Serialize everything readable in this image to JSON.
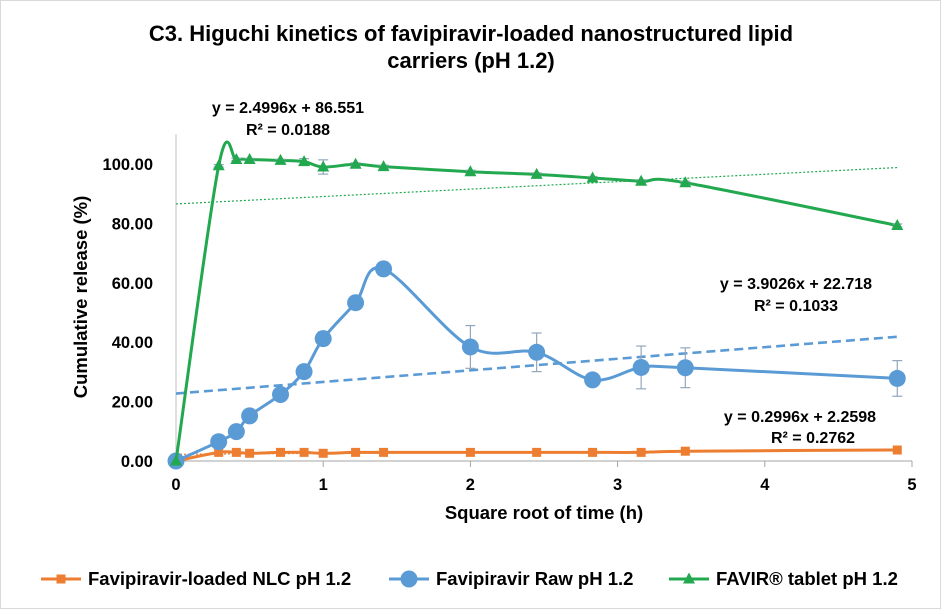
{
  "chart_data": {
    "type": "line",
    "title": "C3. Higuchi kinetics of favipiravir-loaded nanostructured lipid carriers (pH 1.2)",
    "xlabel": "Square root of time (h)",
    "ylabel": "Cumulative release (%)",
    "xlim": [
      0,
      5
    ],
    "ylim": [
      0,
      110
    ],
    "x_ticks": [
      0,
      1,
      2,
      3,
      4,
      5
    ],
    "x_tick_labels": [
      "0",
      "1",
      "2",
      "3",
      "4",
      "5"
    ],
    "y_ticks": [
      0,
      20,
      40,
      60,
      80,
      100
    ],
    "y_tick_labels": [
      "0.00",
      "20.00",
      "40.00",
      "60.00",
      "80.00",
      "100.00"
    ],
    "grid": false,
    "legend": "bottom",
    "smoothed": true,
    "x": [
      0,
      0.29,
      0.41,
      0.5,
      0.71,
      0.87,
      1,
      1.22,
      1.41,
      2,
      2.45,
      2.83,
      3.16,
      3.46,
      4.9
    ],
    "series": [
      {
        "name": "Favipiravir-loaded NLC pH 1.2",
        "color": "#ED7D31",
        "marker": "square",
        "y": [
          0,
          2.9,
          2.9,
          2.6,
          2.9,
          2.9,
          2.6,
          2.9,
          2.9,
          2.9,
          2.9,
          2.9,
          2.9,
          3.3,
          3.7
        ],
        "y_error": [
          0,
          0,
          0,
          0,
          0,
          0,
          0,
          0,
          0,
          0,
          0,
          0,
          0,
          0,
          0
        ]
      },
      {
        "name": "Favipiravir Raw pH 1.2",
        "color": "#5B9BD5",
        "marker": "circle",
        "y": [
          0,
          6.5,
          9.9,
          15.2,
          22.4,
          30.1,
          41.2,
          53.3,
          64.7,
          38.4,
          36.6,
          27.3,
          31.5,
          31.4,
          27.8
        ],
        "y_error": [
          0,
          0.5,
          0.5,
          0.6,
          0.6,
          0.8,
          2.3,
          0.8,
          0.8,
          7.2,
          6.5,
          2.1,
          7.2,
          6.7,
          6.0
        ]
      },
      {
        "name": "FAVIR® tablet pH 1.2",
        "color": "#22A84F",
        "marker": "triangle",
        "y": [
          0,
          99.4,
          101.5,
          101.5,
          101.2,
          100.8,
          99.0,
          99.9,
          99.1,
          97.4,
          96.5,
          95.3,
          94.2,
          93.7,
          79.3
        ],
        "y_error": [
          0,
          0.4,
          0.4,
          0.4,
          0.4,
          1.0,
          2.4,
          0.5,
          0.5,
          0.5,
          0.5,
          0.5,
          0.5,
          0.5,
          0.5
        ]
      }
    ],
    "trendlines": [
      {
        "series_index": 0,
        "line_style": "dotted",
        "slope": 0.2996,
        "intercept": 2.2598,
        "equation": "y = 0.2996x + 2.2598",
        "r2": "R² = 0.2762"
      },
      {
        "series_index": 1,
        "line_style": "dashed",
        "slope": 3.9026,
        "intercept": 22.718,
        "equation": "y = 3.9026x + 22.718",
        "r2": "R² = 0.1033"
      },
      {
        "series_index": 2,
        "line_style": "dotted",
        "slope": 2.4996,
        "intercept": 86.551,
        "equation": "y = 2.4996x + 86.551",
        "r2": "R² = 0.0188"
      }
    ]
  }
}
